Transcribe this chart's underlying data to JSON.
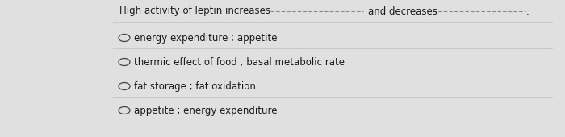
{
  "background_color": "#e0e0e0",
  "card_color": "#f2f2f2",
  "question_part1": "High activity of leptin increases",
  "question_mid": "and decreases",
  "question_end": ".",
  "choices": [
    "energy expenditure ; appetite",
    "thermic effect of food ; basal metabolic rate",
    "fat storage ; fat oxidation",
    "appetite ; energy expenditure"
  ],
  "text_color": "#1a1a1a",
  "line_color": "#c8c8c8",
  "circle_color": "#444444",
  "dash_color": "#888888",
  "question_fontsize": 8.5,
  "choice_fontsize": 8.5
}
